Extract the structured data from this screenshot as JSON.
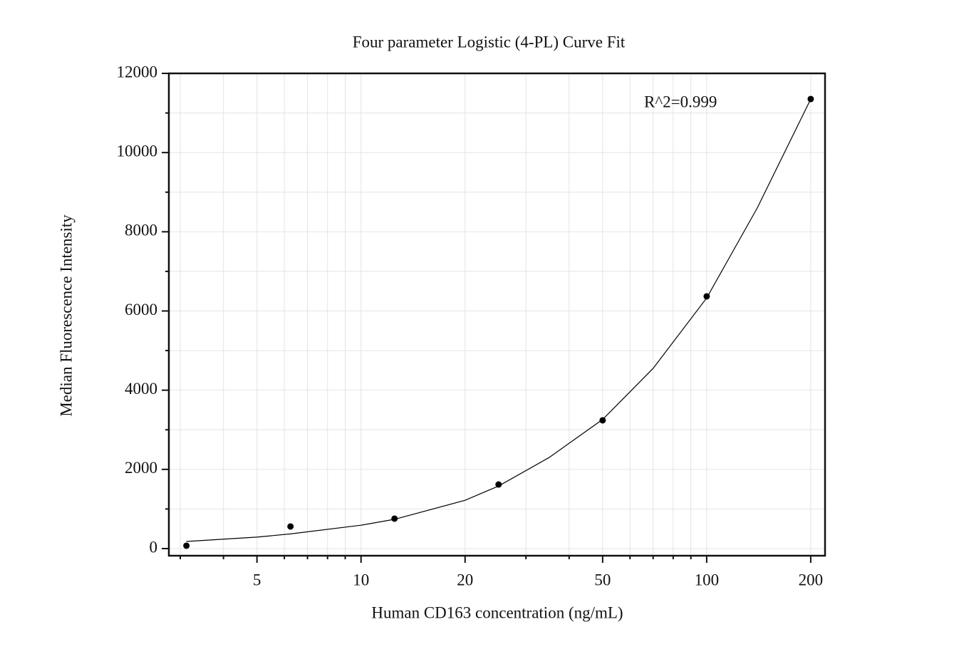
{
  "chart_data": {
    "type": "scatter",
    "title": "Four parameter Logistic (4-PL) Curve Fit",
    "x_label": "Human CD163 concentration (ng/mL)",
    "y_label": "Median Fluorescence Intensity",
    "annotation": "R^2=0.999",
    "x_scale": "log",
    "grid": true,
    "xlim": [
      2.78,
      220
    ],
    "ylim": [
      -180,
      12000
    ],
    "xticks": [
      5,
      10,
      20,
      50,
      100,
      200
    ],
    "xminorticks": [
      3,
      4,
      6,
      7,
      8,
      9,
      30,
      40,
      60,
      70,
      80,
      90
    ],
    "yticks": [
      0,
      2000,
      4000,
      6000,
      8000,
      10000,
      12000
    ],
    "yminorticks": [
      1000,
      3000,
      5000,
      7000,
      9000,
      11000
    ],
    "series": [
      {
        "style": "points",
        "color": "#000000",
        "x": [
          3.125,
          6.25,
          12.5,
          25,
          50,
          100,
          200
        ],
        "values": [
          72,
          558,
          756,
          1619,
          3239,
          6369,
          11353
        ]
      },
      {
        "style": "line",
        "color": "#000000",
        "x": [
          3.125,
          5,
          6.25,
          10,
          12.5,
          20,
          25,
          35,
          50,
          70,
          100,
          140,
          200
        ],
        "values": [
          180,
          290,
          370,
          590,
          740,
          1220,
          1580,
          2300,
          3260,
          4550,
          6330,
          8600,
          11350
        ]
      }
    ]
  }
}
